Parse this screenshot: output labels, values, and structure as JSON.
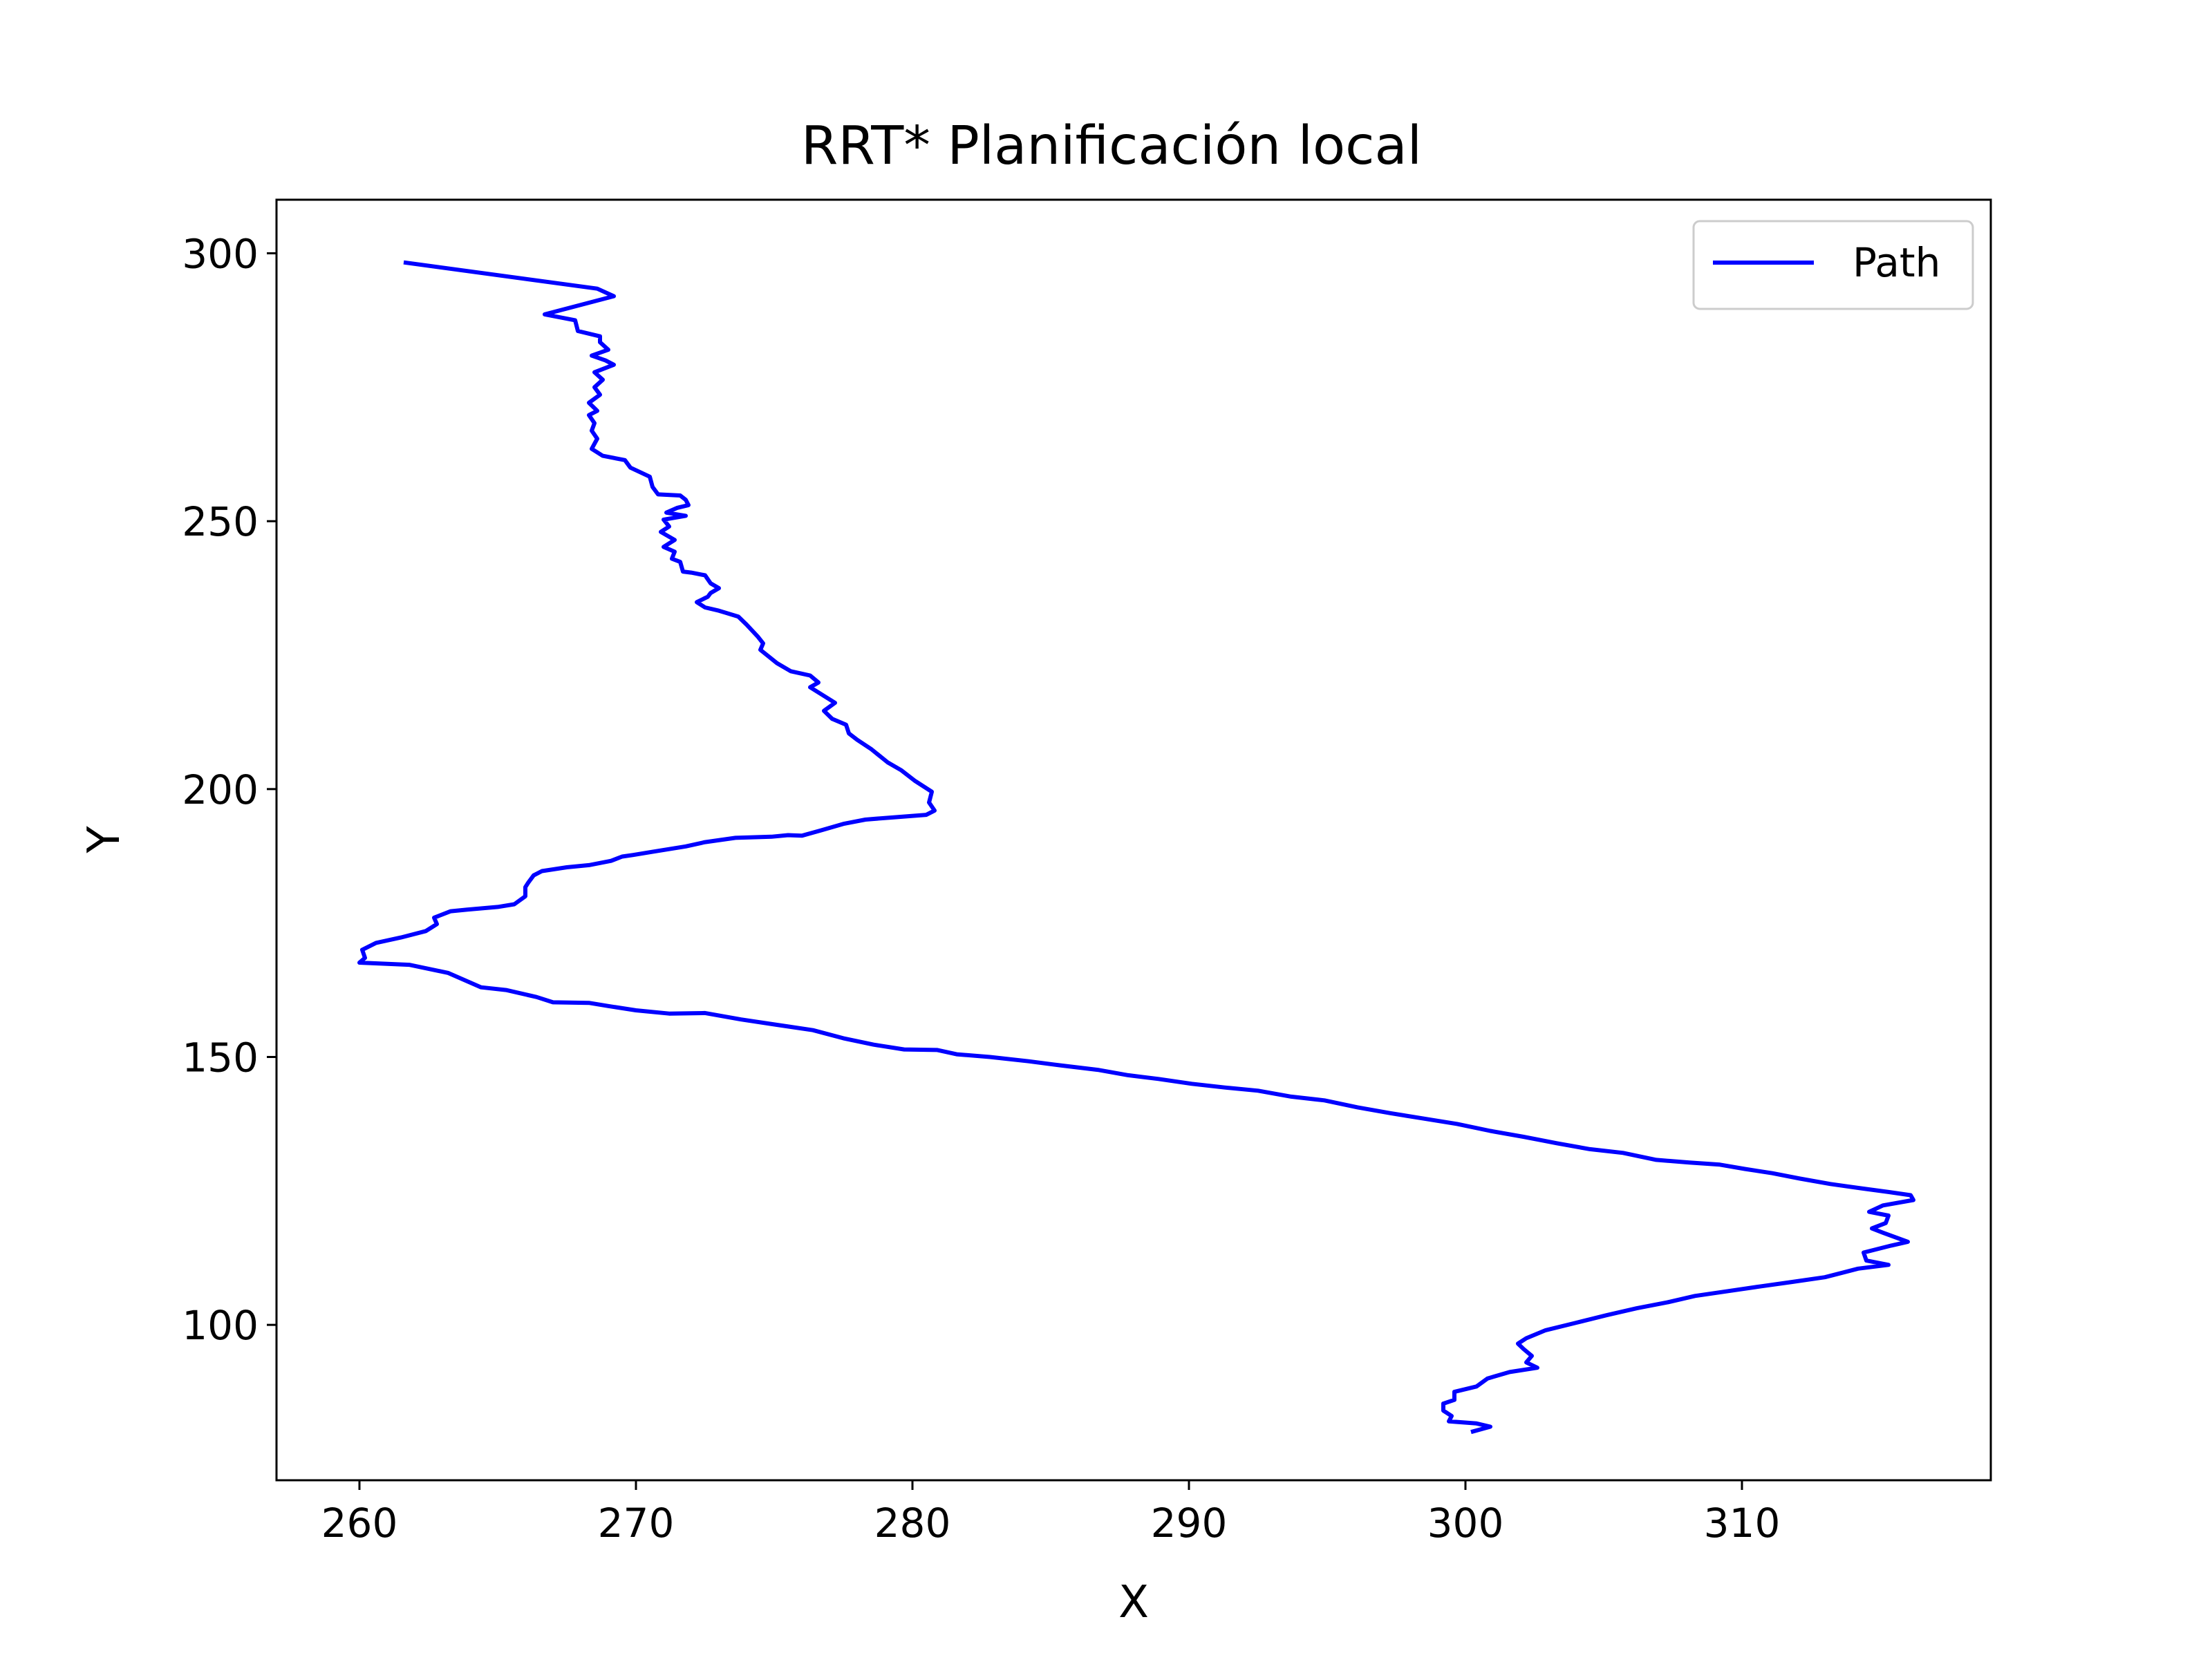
{
  "chart_data": {
    "type": "line",
    "title": "RRT* Planificación local",
    "xlabel": "X",
    "ylabel": "Y",
    "xlim": [
      257,
      319
    ],
    "ylim": [
      71,
      310
    ],
    "xticks": [
      260,
      270,
      280,
      290,
      300,
      310
    ],
    "yticks": [
      100,
      150,
      200,
      250,
      300
    ],
    "grid": false,
    "legend": {
      "position": "top-right",
      "entries": [
        "Path"
      ]
    },
    "colors": {
      "path": "#0000ff",
      "axes": "#000000",
      "legend_border": "#cccccc"
    },
    "series": [
      {
        "name": "Path",
        "color": "#0000ff",
        "points": [
          [
            261.6,
            298.3
          ],
          [
            268.6,
            293.4
          ],
          [
            269.2,
            292.0
          ],
          [
            266.7,
            288.6
          ],
          [
            267.8,
            287.5
          ],
          [
            267.9,
            285.5
          ],
          [
            268.7,
            284.5
          ],
          [
            268.7,
            283.4
          ],
          [
            269.0,
            282.0
          ],
          [
            268.4,
            280.9
          ],
          [
            268.9,
            280.0
          ],
          [
            269.2,
            279.2
          ],
          [
            268.5,
            277.8
          ],
          [
            268.8,
            276.4
          ],
          [
            268.5,
            275.0
          ],
          [
            268.7,
            273.6
          ],
          [
            268.3,
            272.1
          ],
          [
            268.6,
            270.6
          ],
          [
            268.3,
            269.8
          ],
          [
            268.5,
            268.3
          ],
          [
            268.4,
            266.9
          ],
          [
            268.6,
            265.4
          ],
          [
            268.4,
            263.5
          ],
          [
            268.8,
            262.2
          ],
          [
            269.6,
            261.4
          ],
          [
            269.8,
            260.0
          ],
          [
            270.5,
            258.3
          ],
          [
            270.6,
            256.4
          ],
          [
            270.8,
            255.0
          ],
          [
            271.6,
            254.8
          ],
          [
            271.8,
            254.0
          ],
          [
            271.9,
            253.0
          ],
          [
            271.5,
            252.5
          ],
          [
            271.1,
            251.6
          ],
          [
            271.8,
            251.0
          ],
          [
            271.0,
            250.3
          ],
          [
            271.2,
            249.0
          ],
          [
            270.9,
            248.0
          ],
          [
            271.4,
            246.5
          ],
          [
            271.0,
            245.2
          ],
          [
            271.4,
            244.3
          ],
          [
            271.3,
            243.0
          ],
          [
            271.6,
            242.4
          ],
          [
            271.7,
            240.6
          ],
          [
            272.0,
            240.4
          ],
          [
            272.5,
            239.9
          ],
          [
            272.7,
            238.4
          ],
          [
            273.0,
            237.5
          ],
          [
            272.7,
            236.6
          ],
          [
            272.6,
            235.9
          ],
          [
            272.2,
            234.9
          ],
          [
            272.5,
            233.9
          ],
          [
            273.0,
            233.3
          ],
          [
            273.7,
            232.2
          ],
          [
            274.0,
            230.7
          ],
          [
            274.4,
            228.5
          ],
          [
            274.6,
            227.2
          ],
          [
            274.5,
            226.0
          ],
          [
            275.1,
            223.5
          ],
          [
            275.6,
            222.0
          ],
          [
            276.3,
            221.2
          ],
          [
            276.6,
            219.9
          ],
          [
            276.3,
            219.0
          ],
          [
            277.2,
            216.1
          ],
          [
            276.8,
            214.6
          ],
          [
            277.1,
            213.1
          ],
          [
            277.6,
            212.0
          ],
          [
            277.7,
            210.4
          ],
          [
            278.0,
            209.2
          ],
          [
            278.5,
            207.5
          ],
          [
            279.1,
            205.0
          ],
          [
            279.6,
            203.5
          ],
          [
            280.1,
            201.5
          ],
          [
            280.7,
            199.5
          ],
          [
            280.6,
            197.5
          ],
          [
            280.8,
            196.0
          ],
          [
            280.5,
            195.2
          ],
          [
            279.0,
            194.6
          ],
          [
            278.3,
            194.3
          ],
          [
            277.5,
            193.5
          ],
          [
            276.7,
            192.3
          ],
          [
            276.0,
            191.3
          ],
          [
            275.5,
            191.4
          ],
          [
            274.9,
            191.1
          ],
          [
            273.6,
            190.9
          ],
          [
            272.5,
            190.1
          ],
          [
            271.8,
            189.3
          ],
          [
            270.6,
            188.3
          ],
          [
            269.9,
            187.7
          ],
          [
            269.5,
            187.4
          ],
          [
            269.1,
            186.6
          ],
          [
            268.3,
            185.8
          ],
          [
            267.5,
            185.4
          ],
          [
            266.6,
            184.7
          ],
          [
            266.3,
            183.9
          ],
          [
            266.1,
            182.5
          ],
          [
            266.0,
            181.7
          ],
          [
            266.0,
            180.0
          ],
          [
            265.6,
            178.5
          ],
          [
            265.0,
            178.0
          ],
          [
            263.9,
            177.5
          ],
          [
            263.3,
            177.2
          ],
          [
            262.7,
            176.0
          ],
          [
            262.8,
            174.8
          ],
          [
            262.4,
            173.5
          ],
          [
            261.5,
            172.3
          ],
          [
            260.6,
            171.3
          ],
          [
            260.1,
            170.0
          ],
          [
            260.2,
            168.5
          ],
          [
            260.0,
            167.6
          ],
          [
            261.8,
            167.2
          ],
          [
            263.2,
            165.7
          ],
          [
            264.4,
            163.0
          ],
          [
            265.3,
            162.5
          ],
          [
            266.4,
            161.2
          ],
          [
            267.0,
            160.2
          ],
          [
            268.3,
            160.1
          ],
          [
            269.0,
            159.5
          ],
          [
            270.0,
            158.7
          ],
          [
            271.2,
            158.1
          ],
          [
            272.5,
            158.2
          ],
          [
            273.8,
            157.0
          ],
          [
            275.1,
            156.0
          ],
          [
            276.4,
            155.0
          ],
          [
            277.5,
            153.5
          ],
          [
            278.6,
            152.3
          ],
          [
            279.7,
            151.4
          ],
          [
            280.9,
            151.3
          ],
          [
            281.6,
            150.5
          ],
          [
            282.8,
            150.0
          ],
          [
            284.2,
            149.2
          ],
          [
            285.4,
            148.4
          ],
          [
            286.7,
            147.6
          ],
          [
            287.8,
            146.6
          ],
          [
            288.9,
            145.9
          ],
          [
            290.1,
            145.0
          ],
          [
            291.3,
            144.3
          ],
          [
            292.5,
            143.7
          ],
          [
            293.7,
            142.6
          ],
          [
            294.9,
            141.9
          ],
          [
            296.1,
            140.6
          ],
          [
            297.3,
            139.5
          ],
          [
            298.5,
            138.5
          ],
          [
            299.7,
            137.5
          ],
          [
            300.9,
            136.2
          ],
          [
            302.1,
            135.1
          ],
          [
            303.3,
            133.9
          ],
          [
            304.5,
            132.8
          ],
          [
            305.7,
            132.1
          ],
          [
            306.9,
            130.8
          ],
          [
            308.1,
            130.3
          ],
          [
            309.2,
            129.9
          ],
          [
            310.1,
            129.1
          ],
          [
            311.1,
            128.3
          ],
          [
            312.1,
            127.3
          ],
          [
            313.2,
            126.3
          ],
          [
            314.3,
            125.5
          ],
          [
            315.3,
            124.8
          ],
          [
            316.1,
            124.2
          ],
          [
            316.2,
            123.3
          ],
          [
            315.1,
            122.3
          ],
          [
            314.6,
            121.1
          ],
          [
            315.3,
            120.4
          ],
          [
            315.2,
            119.0
          ],
          [
            314.7,
            118.0
          ],
          [
            315.1,
            117.2
          ],
          [
            316.0,
            115.5
          ],
          [
            315.4,
            114.8
          ],
          [
            314.4,
            113.5
          ],
          [
            314.5,
            112.0
          ],
          [
            315.3,
            111.2
          ],
          [
            314.2,
            110.5
          ],
          [
            313.0,
            108.9
          ],
          [
            311.8,
            108.0
          ],
          [
            310.7,
            107.2
          ],
          [
            309.5,
            106.3
          ],
          [
            308.3,
            105.4
          ],
          [
            307.3,
            104.2
          ],
          [
            306.2,
            103.1
          ],
          [
            305.1,
            101.8
          ],
          [
            304.0,
            100.4
          ],
          [
            302.9,
            99.0
          ],
          [
            302.2,
            97.5
          ],
          [
            301.9,
            96.5
          ],
          [
            302.1,
            95.5
          ],
          [
            302.4,
            94.2
          ],
          [
            302.2,
            93.0
          ],
          [
            302.6,
            92.0
          ],
          [
            301.6,
            91.2
          ],
          [
            300.8,
            90.0
          ],
          [
            300.4,
            88.5
          ],
          [
            299.6,
            87.5
          ],
          [
            299.6,
            86.0
          ],
          [
            299.2,
            85.3
          ],
          [
            299.2,
            84.0
          ],
          [
            299.5,
            83.0
          ],
          [
            299.4,
            82.0
          ],
          [
            300.4,
            81.6
          ],
          [
            300.9,
            81.0
          ],
          [
            300.2,
            80.0
          ]
        ]
      }
    ]
  }
}
